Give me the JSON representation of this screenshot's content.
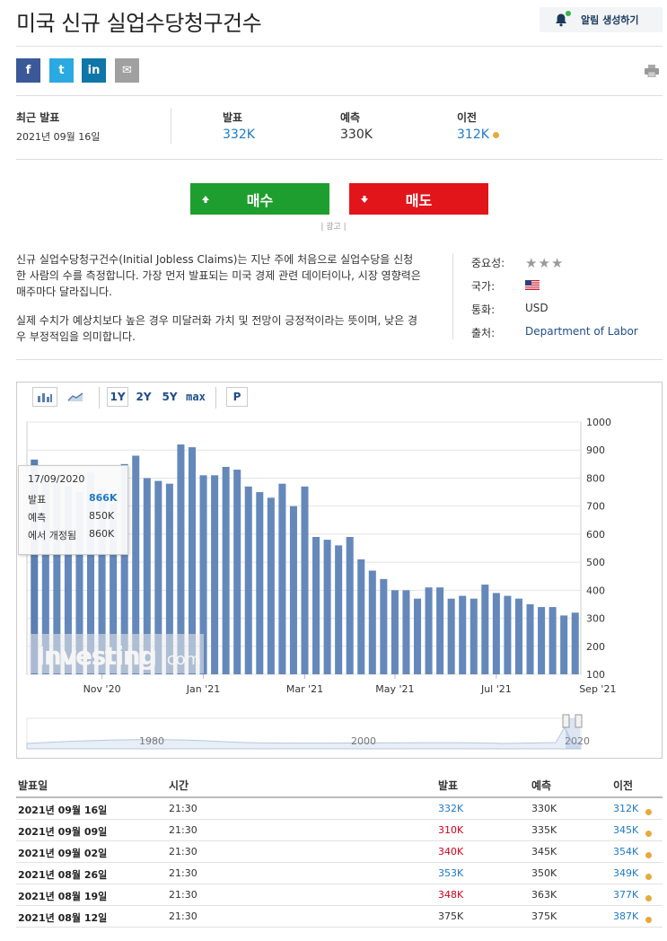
{
  "page": {
    "title": "미국 신규 실업수당청구건수",
    "alert_label": "알림 생성하기"
  },
  "share": [
    {
      "name": "facebook",
      "glyph": "f",
      "color": "#3b5998"
    },
    {
      "name": "twitter",
      "glyph": "t",
      "color": "#2ba9e1"
    },
    {
      "name": "linkedin",
      "glyph": "in",
      "color": "#0e76a8"
    },
    {
      "name": "email",
      "glyph": "✉",
      "color": "#a0a0a0"
    }
  ],
  "release": {
    "latest_label": "최근 발표",
    "latest_date": "2021년 09월 16일",
    "actual_label": "발표",
    "actual_value": "332K",
    "forecast_label": "예측",
    "forecast_value": "330K",
    "previous_label": "이전",
    "previous_value": "312K"
  },
  "trade": {
    "buy_label": "매수",
    "sell_label": "매도",
    "ad_label": "| 광고 |"
  },
  "description": {
    "paragraph1": "신규 실업수당청구건수(Initial Jobless Claims)는 지난 주에 처음으로 실업수당을 신청한 사람의 수를 측정합니다. 가장 먼저 발표되는 미국 경제 관련 데이터이나, 시장 영향력은 매주마다 달라집니다.",
    "paragraph2": "실제 수치가 예상치보다 높은 경우 미달러화 가치 및 전망이 긍정적이라는 뜻이며, 낮은 경우 부정적임을 의미합니다."
  },
  "meta": {
    "importance_label": "중요성:",
    "importance_stars": 3,
    "country_label": "국가:",
    "currency_label": "통화:",
    "currency_value": "USD",
    "source_label": "출처:",
    "source_value": "Department of Labor"
  },
  "chart_toolbar": {
    "bar_icon": "bar-chart-icon",
    "line_icon": "line-chart-icon",
    "ranges": [
      "1Y",
      "2Y",
      "5Y",
      "max"
    ],
    "p_label": "P"
  },
  "chart_data": {
    "type": "bar",
    "y_ticks": [
      "1000",
      "900",
      "800",
      "700",
      "600",
      "500",
      "400",
      "300",
      "200",
      "100"
    ],
    "ylim": [
      100,
      1000
    ],
    "x_tick_labels": [
      "Nov '20",
      "Jan '21",
      "Mar '21",
      "May '21",
      "Jul '21",
      "Sep '21"
    ],
    "x_tick_bar_index": [
      6,
      15,
      24,
      32,
      41,
      50
    ],
    "values": [
      866,
      800,
      790,
      770,
      750,
      820,
      760,
      710,
      850,
      880,
      800,
      790,
      780,
      920,
      910,
      810,
      810,
      840,
      830,
      770,
      750,
      730,
      780,
      700,
      770,
      590,
      580,
      560,
      590,
      510,
      470,
      440,
      400,
      400,
      370,
      410,
      410,
      370,
      380,
      370,
      420,
      390,
      380,
      370,
      350,
      340,
      340,
      310,
      320
    ],
    "highlight_index": 0,
    "navigator_labels": [
      "1980",
      "2000",
      "2020"
    ],
    "watermark": "Investing",
    "watermark_suffix": ".com",
    "tooltip": {
      "date": "17/09/2020",
      "actual_label": "발표",
      "actual_value": "866K",
      "forecast_label": "예측",
      "forecast_value": "850K",
      "revised_label": "에서 개정됨",
      "revised_value": "860K"
    }
  },
  "table": {
    "headers": {
      "date": "발표일",
      "time": "시간",
      "actual": "발표",
      "forecast": "예측",
      "previous": "이전"
    },
    "rows": [
      {
        "date": "2021년 09월 16일",
        "time": "21:30",
        "actual": "332K",
        "actual_status": "pos",
        "forecast": "330K",
        "previous": "312K"
      },
      {
        "date": "2021년 09월 09일",
        "time": "21:30",
        "actual": "310K",
        "actual_status": "neg",
        "forecast": "335K",
        "previous": "345K"
      },
      {
        "date": "2021년 09월 02일",
        "time": "21:30",
        "actual": "340K",
        "actual_status": "neg",
        "forecast": "345K",
        "previous": "354K"
      },
      {
        "date": "2021년 08월 26일",
        "time": "21:30",
        "actual": "353K",
        "actual_status": "pos",
        "forecast": "350K",
        "previous": "349K"
      },
      {
        "date": "2021년 08월 19일",
        "time": "21:30",
        "actual": "348K",
        "actual_status": "neg",
        "forecast": "363K",
        "previous": "377K"
      },
      {
        "date": "2021년 08월 12일",
        "time": "21:30",
        "actual": "375K",
        "actual_status": "neutral",
        "forecast": "375K",
        "previous": "387K"
      }
    ]
  }
}
